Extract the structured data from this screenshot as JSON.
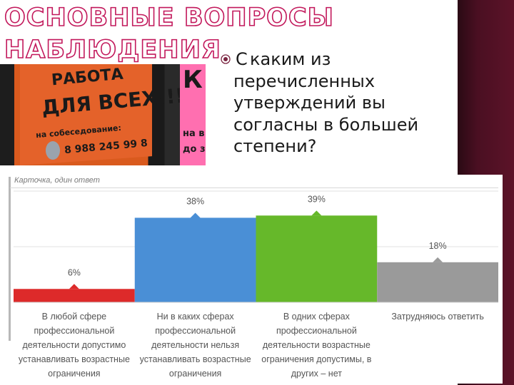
{
  "slide": {
    "title_line_1": "ОСНОВНЫЕ ВОПРОСЫ",
    "title_line_2": "НАБЛЮДЕНИЯ",
    "bullet_icon": "target-bullet-icon",
    "question_first": "С",
    "question_rest": "каким из перечисленных утверждений вы согласны в большей степени?"
  },
  "photo": {
    "poster_line_1": "РАБОТА",
    "poster_line_2": "ДЛЯ ВСЕХ!!!",
    "poster_line_3": "на собеседование:",
    "poster_line_4": "8 988 245 99 8",
    "side_letter": "К",
    "side_line_1": "на в",
    "side_line_2": "до з"
  },
  "card": {
    "caption": "Карточка, один ответ"
  },
  "colors": {
    "title_stroke": "#c2185b",
    "right_stripe": "#4a0f22",
    "bar_red": "#dd2a2a",
    "bar_blue": "#4a8fd6",
    "bar_green": "#66b82a",
    "bar_gray": "#9a9a9a"
  },
  "chart_data": {
    "type": "bar",
    "categories": [
      "В любой сфере профессиональной деятельности допустимо устанавливать возрастные ограничения",
      "Ни в каких сферах профессиональной деятельности нельзя устанавливать возрастные ограничения",
      "В одних сферах профессиональной деятельности возрастные ограничения допустимы, в других – нет",
      "Затрудняюсь ответить"
    ],
    "category_lines": [
      [
        "В любой сфере",
        "профессиональной",
        "деятельности допустимо",
        "устанавливать возрастные",
        "ограничения"
      ],
      [
        "Ни в каких сферах",
        "профессиональной",
        "деятельности нельзя",
        "устанавливать возрастные",
        "ограничения"
      ],
      [
        "В одних сферах",
        "профессиональной",
        "деятельности возрастные",
        "ограничения допустимы, в",
        "других – нет"
      ],
      [
        "Затрудняюсь ответить"
      ]
    ],
    "values": [
      6,
      38,
      39,
      18
    ],
    "value_labels": [
      "6%",
      "38%",
      "39%",
      "18%"
    ],
    "colors": [
      "#dd2a2a",
      "#4a8fd6",
      "#66b82a",
      "#9a9a9a"
    ],
    "ylim": [
      0,
      50
    ],
    "unit": "%",
    "grid": true,
    "legend": "none",
    "title": "",
    "xlabel": "",
    "ylabel": ""
  }
}
